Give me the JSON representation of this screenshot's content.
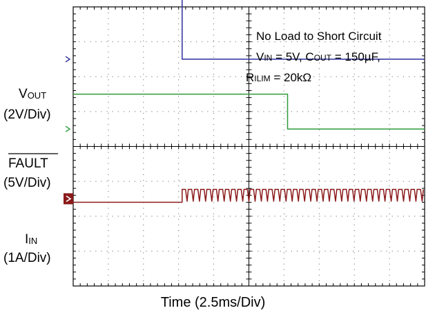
{
  "chart_data": {
    "type": "line",
    "title": "",
    "xlabel": "Time (2.5ms/Div)",
    "grid": true,
    "divisions": {
      "x": 10,
      "y": 8
    },
    "annotation": {
      "line1": "No Load to Short Circuit",
      "line2": {
        "vin_main": "V",
        "vin_sub": "IN",
        "vin_rest": " = 5V, C",
        "cout_sub": "OUT",
        "cout_rest": " = 150µF,"
      },
      "line3": {
        "r_main": "R",
        "r_sub": "ILIM",
        "r_rest": " = 20kΩ"
      }
    },
    "channels": [
      {
        "id": "vout",
        "name_main": "V",
        "name_sub": "OUT",
        "scale": "(2V/Div)",
        "color": "#2b2d9c",
        "ref_div": 1.5,
        "points": [
          [
            0,
            4.7
          ],
          [
            3.1,
            4.7
          ],
          [
            3.1,
            0.0
          ],
          [
            10,
            0.0
          ]
        ]
      },
      {
        "id": "fault",
        "name_main": "FAULT",
        "overbar": true,
        "scale": "(5V/Div)",
        "color": "#2e9a3a",
        "ref_div": 3.5,
        "points": [
          [
            0,
            1.0
          ],
          [
            6.1,
            1.0
          ],
          [
            6.1,
            0.0
          ],
          [
            10,
            0.0
          ]
        ]
      },
      {
        "id": "iin",
        "name_main": "I",
        "name_sub": "IN",
        "scale": "(1A/Div)",
        "color": "#8b1a1a",
        "ref_div": 5.5,
        "baseline": [
          [
            0,
            -0.1
          ],
          [
            3.1,
            -0.1
          ]
        ],
        "pulse_start_div": 3.1,
        "pulse_period_div": 0.176,
        "pulse_high_div": 0.27,
        "pulse_low_div": -0.07
      }
    ]
  }
}
